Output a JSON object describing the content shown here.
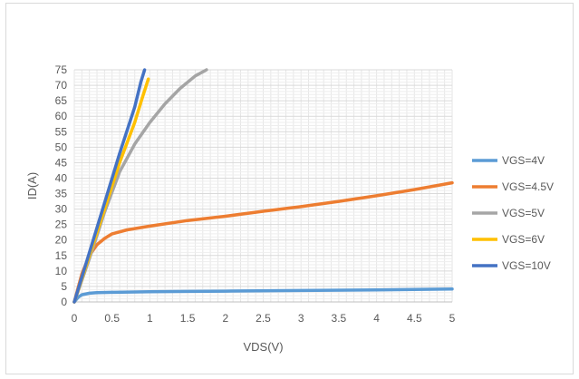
{
  "chart_data": {
    "type": "line",
    "title": "",
    "xlabel": "VDS(V)",
    "ylabel": "ID(A)",
    "xlim": [
      0,
      5
    ],
    "ylim": [
      0,
      75
    ],
    "x_ticks": [
      "0",
      "0.5",
      "1",
      "1.5",
      "2",
      "2.5",
      "3",
      "3.5",
      "4",
      "4.5",
      "5"
    ],
    "y_ticks": [
      "0",
      "5",
      "10",
      "15",
      "20",
      "25",
      "30",
      "35",
      "40",
      "45",
      "50",
      "55",
      "60",
      "65",
      "70",
      "75"
    ],
    "grid": "major and minor gridlines on both axes",
    "legend_position": "right",
    "series": [
      {
        "name": "VGS=4V",
        "color": "#5b9bd5",
        "x": [
          0,
          0.05,
          0.1,
          0.2,
          0.3,
          0.5,
          1,
          1.5,
          2,
          3,
          4,
          5
        ],
        "y": [
          0,
          1.5,
          2.3,
          2.8,
          3.0,
          3.1,
          3.3,
          3.4,
          3.5,
          3.7,
          3.9,
          4.2
        ]
      },
      {
        "name": "VGS=4.5V",
        "color": "#ed7d31",
        "x": [
          0,
          0.1,
          0.2,
          0.3,
          0.4,
          0.5,
          0.7,
          1,
          1.5,
          2,
          2.5,
          3,
          3.5,
          4,
          4.5,
          5
        ],
        "y": [
          0,
          9,
          15,
          18.5,
          20.5,
          22,
          23.3,
          24.5,
          26.3,
          27.7,
          29.3,
          30.8,
          32.5,
          34.3,
          36.3,
          38.5
        ]
      },
      {
        "name": "VGS=5V",
        "color": "#a5a5a5",
        "x": [
          0,
          0.2,
          0.4,
          0.6,
          0.8,
          1,
          1.2,
          1.4,
          1.6,
          1.75
        ],
        "y": [
          0,
          14,
          29,
          42,
          51,
          58,
          64,
          69,
          73,
          75
        ]
      },
      {
        "name": "VGS=6V",
        "color": "#ffc000",
        "x": [
          0,
          0.2,
          0.4,
          0.6,
          0.8,
          0.9,
          0.98
        ],
        "y": [
          0,
          15,
          30,
          45,
          58,
          66,
          72
        ]
      },
      {
        "name": "VGS=10V",
        "color": "#4472c4",
        "x": [
          0,
          0.2,
          0.4,
          0.6,
          0.8,
          0.88,
          0.93
        ],
        "y": [
          0,
          16,
          32,
          48,
          63,
          71,
          75
        ]
      }
    ]
  }
}
